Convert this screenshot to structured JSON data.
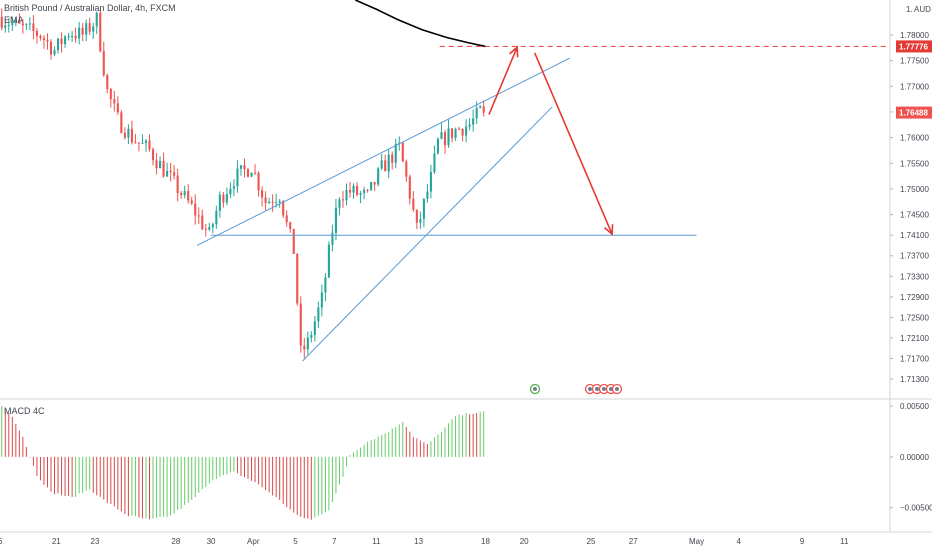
{
  "header": {
    "symbol_title": "British Pound / Australian Dollar, 4h, FXCM",
    "ema_label": "EMA",
    "currency": "AUD"
  },
  "price_axis": {
    "ticks": [
      1.78,
      1.775,
      1.77,
      1.765,
      1.76,
      1.755,
      1.75,
      1.745,
      1.741,
      1.737,
      1.733,
      1.729,
      1.725,
      1.721,
      1.717,
      1.713
    ],
    "tick_labels": [
      "1.78000",
      "1.77500",
      "1.77000",
      "1.76500",
      "1.76000",
      "1.75500",
      "1.75000",
      "1.74500",
      "1.74100",
      "1.73700",
      "1.73300",
      "1.72900",
      "1.72500",
      "1.72100",
      "1.71700",
      "1.71300"
    ],
    "top_label": "1.",
    "range": [
      1.7093,
      1.7868
    ],
    "scale": "linear",
    "target_label": "1.77776",
    "target_value": 1.77776,
    "last_label": "1.76488",
    "last_value": 1.76488
  },
  "time_axis": {
    "labels": [
      "6",
      "21",
      "23",
      "28",
      "30",
      "Apr",
      "5",
      "7",
      "11",
      "13",
      "18",
      "20",
      "25",
      "27",
      "May",
      "4",
      "9",
      "11"
    ],
    "index": [
      0,
      16,
      27,
      50,
      60,
      72,
      84,
      95,
      107,
      119,
      138,
      149,
      168,
      180,
      198,
      210,
      228,
      240
    ],
    "range": [
      0,
      253
    ]
  },
  "macd_panel": {
    "label": "MACD 4C",
    "ticks": [
      0.005,
      0.0,
      -0.005
    ],
    "tick_labels": [
      "0.00500",
      "0.00000",
      "−0.00500"
    ],
    "range": [
      -0.0073,
      0.0055
    ]
  },
  "chart_data": {
    "type": "candlestick",
    "candle_count": 138,
    "anchors": [
      [
        0,
        1.7835
      ],
      [
        6,
        1.7815
      ],
      [
        12,
        1.78
      ],
      [
        16,
        1.777
      ],
      [
        20,
        1.7805
      ],
      [
        24,
        1.78
      ],
      [
        28,
        1.783
      ],
      [
        31,
        1.769
      ],
      [
        34,
        1.7635
      ],
      [
        38,
        1.76
      ],
      [
        43,
        1.7575
      ],
      [
        50,
        1.751
      ],
      [
        56,
        1.7455
      ],
      [
        60,
        1.741
      ],
      [
        63,
        1.748
      ],
      [
        67,
        1.752
      ],
      [
        72,
        1.7545
      ],
      [
        74,
        1.751
      ],
      [
        76,
        1.7475
      ],
      [
        80,
        1.749
      ],
      [
        82,
        1.743
      ],
      [
        84,
        1.738
      ],
      [
        86,
        1.718
      ],
      [
        88,
        1.72
      ],
      [
        92,
        1.7285
      ],
      [
        95,
        1.742
      ],
      [
        97,
        1.749
      ],
      [
        100,
        1.7495
      ],
      [
        105,
        1.7485
      ],
      [
        109,
        1.754
      ],
      [
        114,
        1.758
      ],
      [
        117,
        1.749
      ],
      [
        119,
        1.742
      ],
      [
        123,
        1.752
      ],
      [
        125,
        1.759
      ],
      [
        130,
        1.7615
      ],
      [
        134,
        1.7625
      ],
      [
        137,
        1.765
      ]
    ],
    "last_close": 1.76488,
    "ema_series": [
      [
        101,
        1.7868
      ],
      [
        107,
        1.785
      ],
      [
        113,
        1.783
      ],
      [
        120,
        1.781
      ],
      [
        127,
        1.7795
      ],
      [
        133,
        1.7785
      ],
      [
        138,
        1.77776
      ]
    ],
    "macd_anchors": [
      [
        0,
        0.005
      ],
      [
        3,
        0.004
      ],
      [
        6,
        0.002
      ],
      [
        8,
        0.0
      ],
      [
        10,
        -0.0018
      ],
      [
        14,
        -0.0035
      ],
      [
        20,
        -0.004
      ],
      [
        25,
        -0.0032
      ],
      [
        30,
        -0.0045
      ],
      [
        36,
        -0.0058
      ],
      [
        42,
        -0.0062
      ],
      [
        48,
        -0.0058
      ],
      [
        54,
        -0.0043
      ],
      [
        60,
        -0.0022
      ],
      [
        66,
        -0.0015
      ],
      [
        72,
        -0.0025
      ],
      [
        78,
        -0.004
      ],
      [
        84,
        -0.0058
      ],
      [
        88,
        -0.0062
      ],
      [
        93,
        -0.0052
      ],
      [
        97,
        -0.002
      ],
      [
        99,
        0.0002
      ],
      [
        104,
        0.0015
      ],
      [
        110,
        0.0025
      ],
      [
        114,
        0.0035
      ],
      [
        117,
        0.002
      ],
      [
        121,
        0.0012
      ],
      [
        125,
        0.0025
      ],
      [
        129,
        0.004
      ],
      [
        133,
        0.0043
      ],
      [
        137,
        0.0044
      ]
    ],
    "annotations": {
      "wedge_upper": [
        [
          56,
          1.739
        ],
        [
          162,
          1.7755
        ]
      ],
      "wedge_lower": [
        [
          86,
          1.7165
        ],
        [
          157,
          1.766
        ]
      ],
      "support_line": [
        [
          60,
          1.741
        ],
        [
          198,
          1.741
        ]
      ],
      "target_dashed": [
        [
          125,
          1.77776
        ],
        [
          253,
          1.77776
        ]
      ],
      "arrow_up": [
        [
          139,
          1.7645
        ],
        [
          147,
          1.7776
        ]
      ],
      "arrow_down": [
        [
          152,
          1.7765
        ],
        [
          174,
          1.7412
        ]
      ]
    },
    "colors": {
      "up": "#26a69a",
      "down": "#ef5350",
      "macd_up": "#66cc66",
      "macd_down": "#d84848",
      "trend": "#5b9bd5",
      "projection": "#e53935",
      "ema": "#000000",
      "last_tag": "#ef5350",
      "target_tag": "#e53935"
    }
  }
}
